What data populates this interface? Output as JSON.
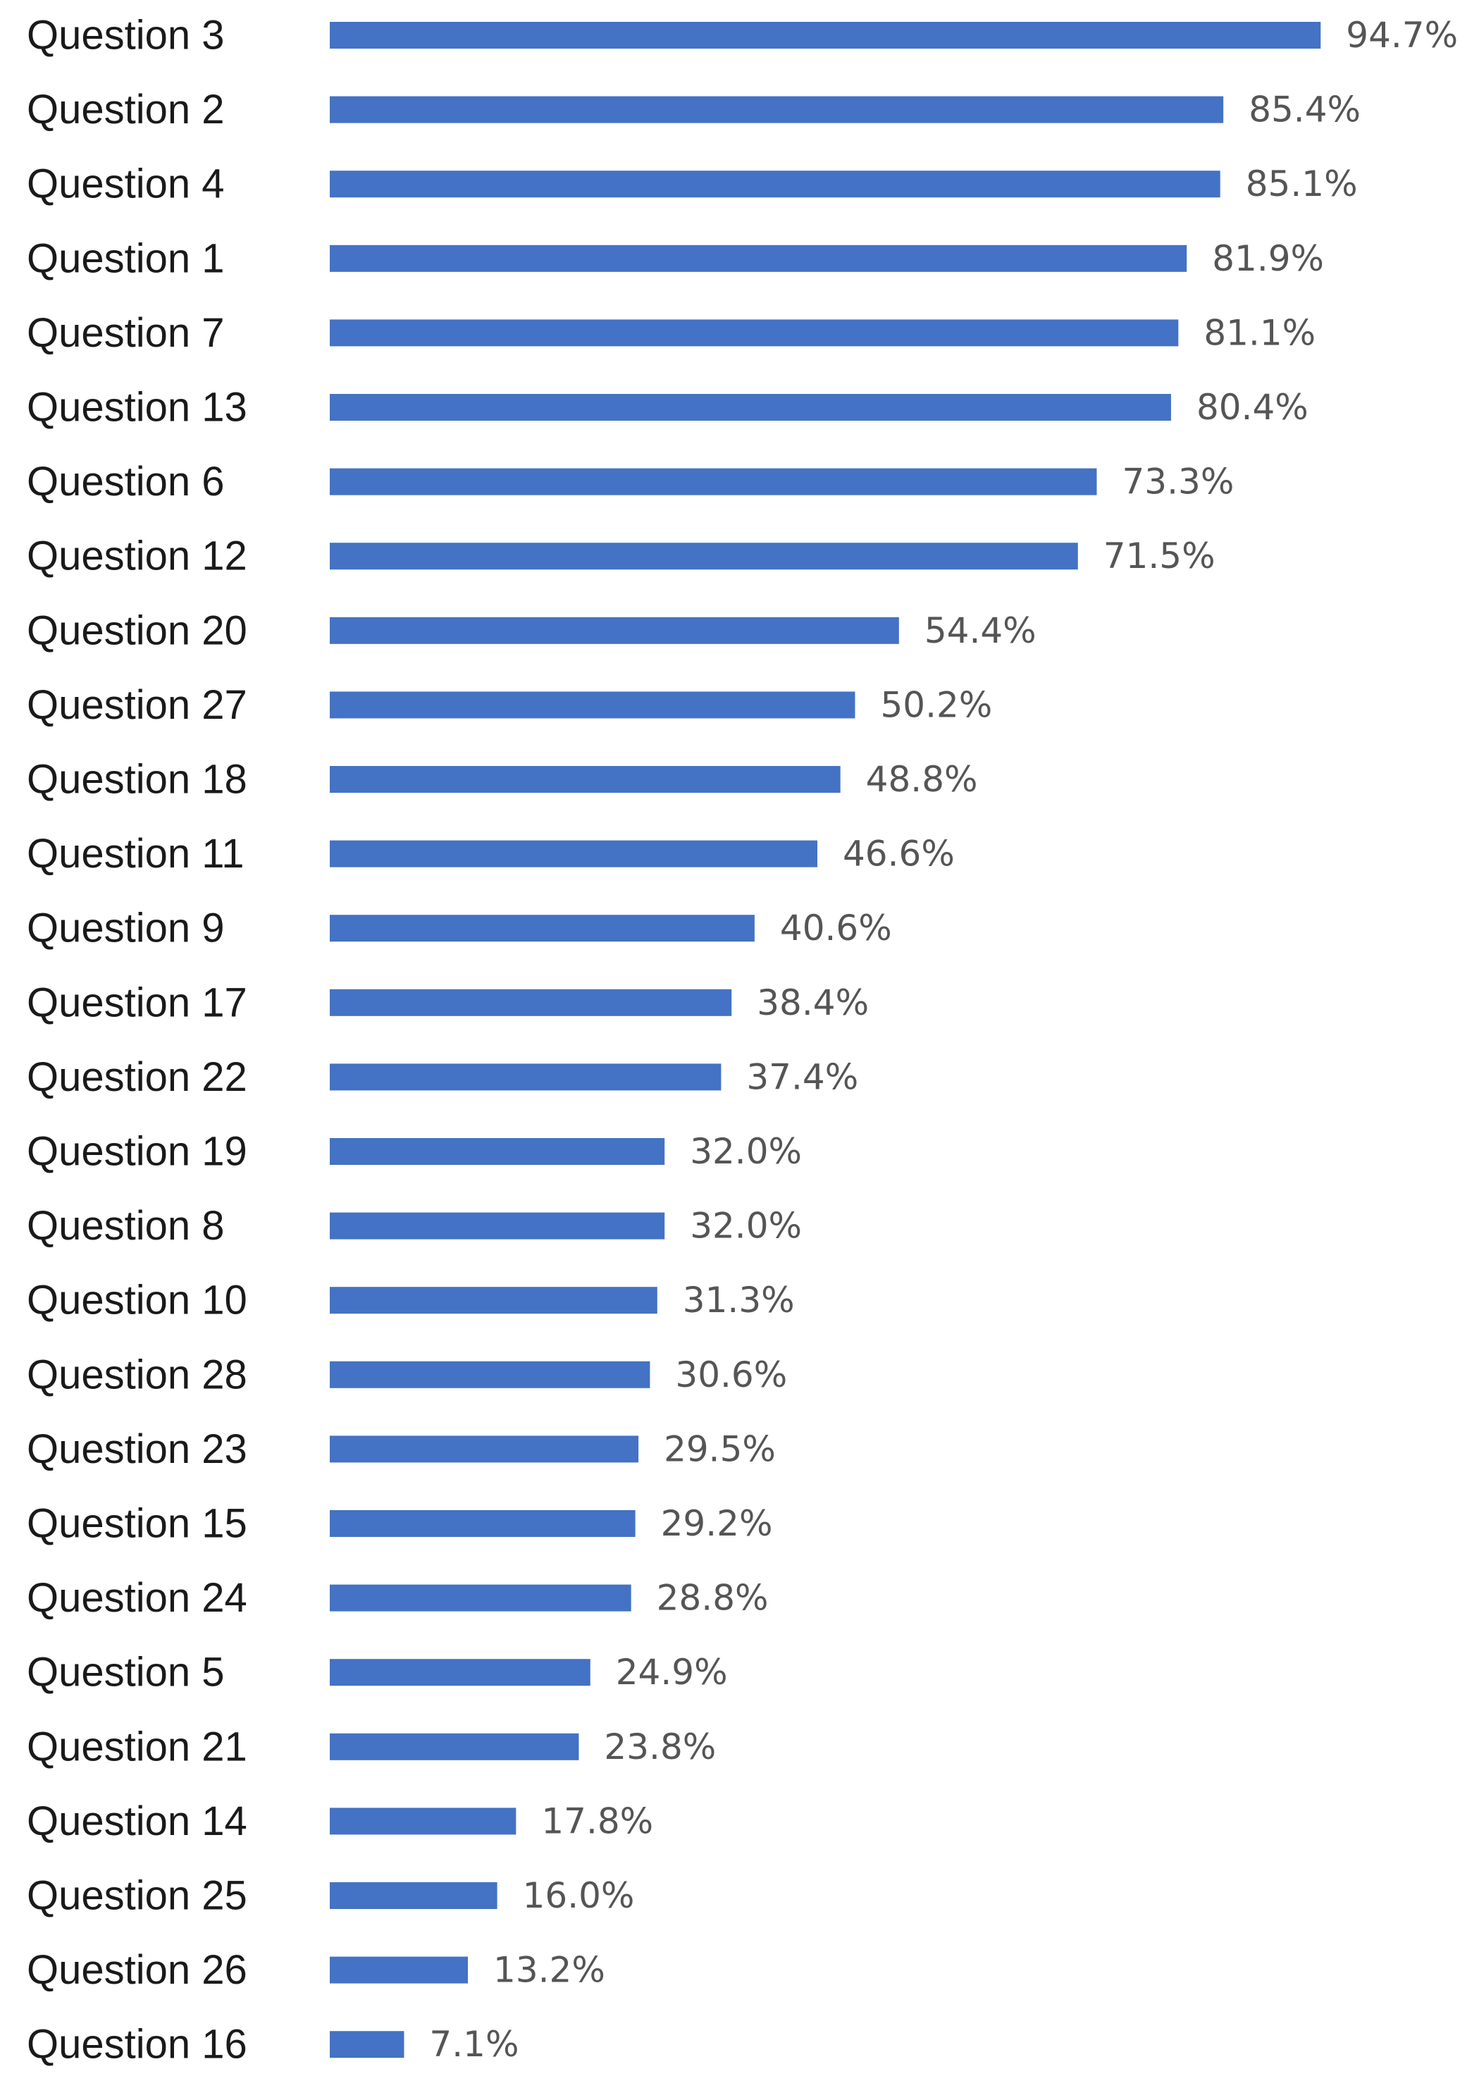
{
  "chart_data": {
    "type": "bar",
    "orientation": "horizontal",
    "categories": [
      "Question 3",
      "Question 2",
      "Question 4",
      "Question 1",
      "Question 7",
      "Question 13",
      "Question 6",
      "Question 12",
      "Question 20",
      "Question 27",
      "Question 18",
      "Question 11",
      "Question 9",
      "Question 17",
      "Question 22",
      "Question 19",
      "Question 8",
      "Question 10",
      "Question 28",
      "Question 23",
      "Question 15",
      "Question 24",
      "Question 5",
      "Question 21",
      "Question 14",
      "Question 25",
      "Question 26",
      "Question 16"
    ],
    "values": [
      94.7,
      85.4,
      85.1,
      81.9,
      81.1,
      80.4,
      73.3,
      71.5,
      54.4,
      50.2,
      48.8,
      46.6,
      40.6,
      38.4,
      37.4,
      32.0,
      32.0,
      31.3,
      30.6,
      29.5,
      29.2,
      28.8,
      24.9,
      23.8,
      17.8,
      16.0,
      13.2,
      7.1
    ],
    "value_labels": [
      "94.7%",
      "85.4%",
      "85.1%",
      "81.9%",
      "81.1%",
      "80.4%",
      "73.3%",
      "71.5%",
      "54.4%",
      "50.2%",
      "48.8%",
      "46.6%",
      "40.6%",
      "38.4%",
      "37.4%",
      "32.0%",
      "32.0%",
      "31.3%",
      "30.6%",
      "29.5%",
      "29.2%",
      "28.8%",
      "24.9%",
      "23.8%",
      "17.8%",
      "16.0%",
      "13.2%",
      "7.1%"
    ],
    "xlim": [
      0,
      100
    ],
    "title": "",
    "xlabel": "",
    "ylabel": "",
    "grid": false,
    "legend": "none",
    "bar_color": "#4472C4"
  }
}
